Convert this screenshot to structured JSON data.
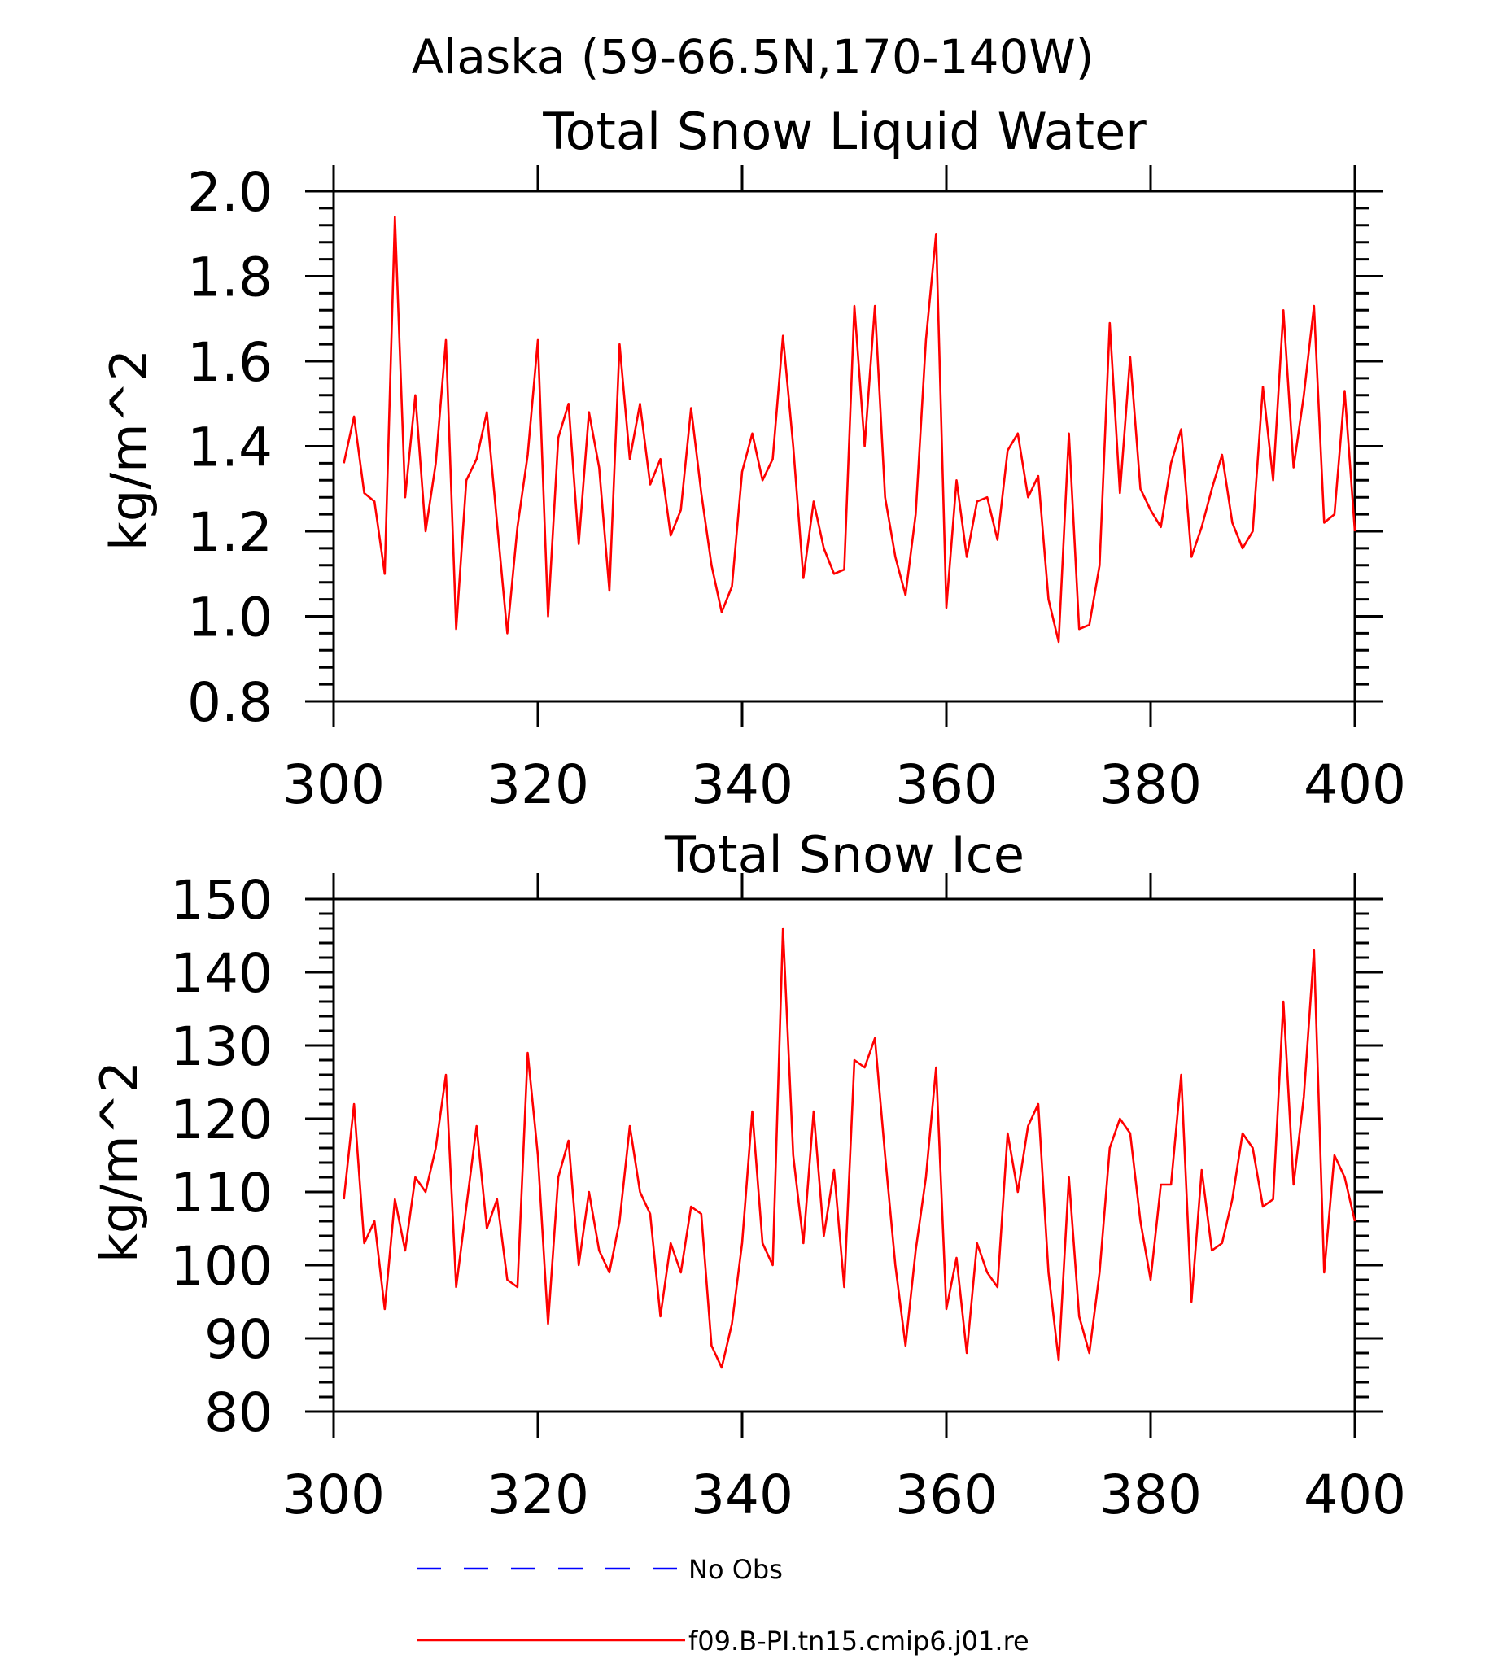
{
  "figure_title": "Alaska (59-66.5N,170-140W)",
  "colors": {
    "model": "#ff0000",
    "obs": "#0000ff"
  },
  "legend": {
    "obs_label": "No Obs",
    "model_label": "f09.B-PI.tn15.cmip6.j01.re"
  },
  "chart_data": [
    {
      "type": "line",
      "title": "Total Snow Liquid Water",
      "ylabel": "kg/m^2",
      "xlabel": "",
      "xlim": [
        300,
        400
      ],
      "ylim": [
        0.8,
        2.0
      ],
      "xticks": [
        300,
        320,
        340,
        360,
        380,
        400
      ],
      "yticks": [
        "0.8",
        "1.0",
        "1.2",
        "1.4",
        "1.6",
        "1.8",
        "2.0"
      ],
      "x_start": 301,
      "series": [
        {
          "name": "f09.B-PI.tn15.cmip6.j01.re",
          "values": [
            1.36,
            1.47,
            1.29,
            1.27,
            1.1,
            1.94,
            1.28,
            1.52,
            1.2,
            1.36,
            1.65,
            0.97,
            1.32,
            1.37,
            1.48,
            1.22,
            0.96,
            1.21,
            1.38,
            1.65,
            1.0,
            1.42,
            1.5,
            1.17,
            1.48,
            1.35,
            1.06,
            1.64,
            1.37,
            1.5,
            1.31,
            1.37,
            1.19,
            1.25,
            1.49,
            1.29,
            1.12,
            1.01,
            1.07,
            1.34,
            1.43,
            1.32,
            1.37,
            1.66,
            1.4,
            1.09,
            1.27,
            1.16,
            1.1,
            1.11,
            1.73,
            1.4,
            1.73,
            1.28,
            1.14,
            1.05,
            1.24,
            1.65,
            1.9,
            1.02,
            1.32,
            1.14,
            1.27,
            1.28,
            1.18,
            1.39,
            1.43,
            1.28,
            1.33,
            1.04,
            0.94,
            1.43,
            0.97,
            0.98,
            1.12,
            1.69,
            1.29,
            1.61,
            1.3,
            1.25,
            1.21,
            1.36,
            1.44,
            1.14,
            1.21,
            1.3,
            1.38,
            1.22,
            1.16,
            1.2,
            1.54,
            1.32,
            1.72,
            1.35,
            1.52,
            1.73,
            1.22,
            1.24,
            1.53,
            1.2
          ]
        }
      ]
    },
    {
      "type": "line",
      "title": "Total Snow Ice",
      "ylabel": "kg/m^2",
      "xlabel": "",
      "xlim": [
        300,
        400
      ],
      "ylim": [
        80,
        150
      ],
      "xticks": [
        300,
        320,
        340,
        360,
        380,
        400
      ],
      "yticks": [
        "80",
        "90",
        "100",
        "110",
        "120",
        "130",
        "140",
        "150"
      ],
      "x_start": 301,
      "series": [
        {
          "name": "f09.B-PI.tn15.cmip6.j01.re",
          "values": [
            109,
            122,
            103,
            106,
            94,
            109,
            102,
            112,
            110,
            116,
            126,
            97,
            108,
            119,
            105,
            109,
            98,
            97,
            129,
            115,
            92,
            112,
            117,
            100,
            110,
            102,
            99,
            106,
            119,
            110,
            107,
            93,
            103,
            99,
            108,
            107,
            89,
            86,
            92,
            103,
            121,
            103,
            100,
            146,
            115,
            103,
            121,
            104,
            113,
            97,
            128,
            127,
            131,
            115,
            100,
            89,
            102,
            112,
            127,
            94,
            101,
            88,
            103,
            99,
            97,
            118,
            110,
            119,
            122,
            99,
            87,
            112,
            93,
            88,
            99,
            116,
            120,
            118,
            106,
            98,
            111,
            111,
            126,
            95,
            113,
            102,
            103,
            109,
            118,
            116,
            108,
            109,
            136,
            111,
            123,
            143,
            99,
            115,
            112,
            106
          ]
        }
      ]
    }
  ]
}
